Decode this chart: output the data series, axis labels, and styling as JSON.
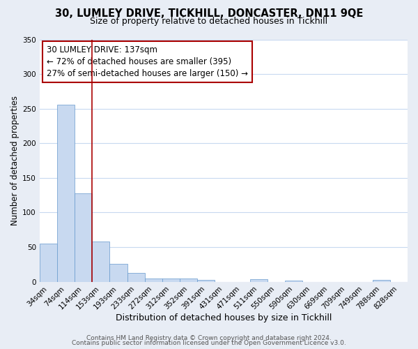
{
  "title": "30, LUMLEY DRIVE, TICKHILL, DONCASTER, DN11 9QE",
  "subtitle": "Size of property relative to detached houses in Tickhill",
  "xlabel": "Distribution of detached houses by size in Tickhill",
  "ylabel": "Number of detached properties",
  "footer_line1": "Contains HM Land Registry data © Crown copyright and database right 2024.",
  "footer_line2": "Contains public sector information licensed under the Open Government Licence v3.0.",
  "categories": [
    "34sqm",
    "74sqm",
    "114sqm",
    "153sqm",
    "193sqm",
    "233sqm",
    "272sqm",
    "312sqm",
    "352sqm",
    "391sqm",
    "431sqm",
    "471sqm",
    "511sqm",
    "550sqm",
    "590sqm",
    "630sqm",
    "669sqm",
    "709sqm",
    "749sqm",
    "788sqm",
    "828sqm"
  ],
  "values": [
    55,
    256,
    128,
    58,
    26,
    13,
    5,
    5,
    5,
    3,
    0,
    0,
    4,
    0,
    2,
    0,
    0,
    0,
    0,
    3,
    0
  ],
  "bar_color": "#c8d9f0",
  "bar_edge_color": "#6699cc",
  "grid_color": "#c8d9f0",
  "ref_line_color": "#aa0000",
  "annotation_line1": "30 LUMLEY DRIVE: 137sqm",
  "annotation_line2": "← 72% of detached houses are smaller (395)",
  "annotation_line3": "27% of semi-detached houses are larger (150) →",
  "annotation_box_color": "white",
  "annotation_box_edge_color": "#aa0000",
  "ylim": [
    0,
    350
  ],
  "yticks": [
    0,
    50,
    100,
    150,
    200,
    250,
    300,
    350
  ],
  "background_color": "#e8edf5",
  "plot_background_color": "white",
  "title_fontsize": 10.5,
  "subtitle_fontsize": 9,
  "xlabel_fontsize": 9,
  "ylabel_fontsize": 8.5,
  "tick_fontsize": 7.5,
  "annotation_fontsize": 8.5,
  "footer_fontsize": 6.5
}
